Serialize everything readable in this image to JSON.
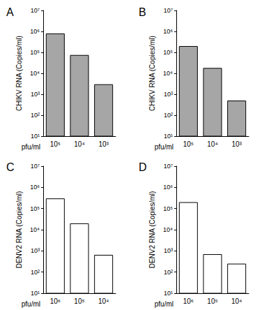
{
  "chart_data": [
    {
      "type": "bar",
      "title": "A",
      "x_label": "pfu/ml",
      "y_label": "CHIKV RNA (Copies/ml)",
      "categories": [
        "10⁵",
        "10⁴",
        "10³"
      ],
      "values": [
        800000,
        75000,
        3000
      ],
      "color": "#a6a6a6",
      "ylim": [
        10,
        10000000
      ],
      "log": "y",
      "grid": false,
      "yticks": [
        {
          "value": 10,
          "label": "10¹"
        },
        {
          "value": 100,
          "label": "10²"
        },
        {
          "value": 1000,
          "label": "10³"
        },
        {
          "value": 10000,
          "label": "10⁴"
        },
        {
          "value": 100000,
          "label": "10⁵"
        },
        {
          "value": 1000000,
          "label": "10⁶"
        },
        {
          "value": 10000000,
          "label": "10⁷"
        }
      ]
    },
    {
      "type": "bar",
      "title": "B",
      "x_label": "pfu/ml",
      "y_label": "CHIKV RNA (Copies/ml)",
      "categories": [
        "10⁵",
        "10⁴",
        "10³"
      ],
      "values": [
        200000,
        18000,
        500
      ],
      "color": "#a6a6a6",
      "ylim": [
        10,
        10000000
      ],
      "log": "y",
      "grid": false,
      "yticks": [
        {
          "value": 10,
          "label": "10¹"
        },
        {
          "value": 100,
          "label": "10²"
        },
        {
          "value": 1000,
          "label": "10³"
        },
        {
          "value": 10000,
          "label": "10⁴"
        },
        {
          "value": 100000,
          "label": "10⁵"
        },
        {
          "value": 1000000,
          "label": "10⁶"
        },
        {
          "value": 10000000,
          "label": "10⁷"
        }
      ]
    },
    {
      "type": "bar",
      "title": "C",
      "x_label": "pfu/ml",
      "y_label": "DENV2 RNA (Copies/ml)",
      "categories": [
        "10⁶",
        "10⁵",
        "10⁴"
      ],
      "values": [
        300000,
        20000,
        650
      ],
      "color": "#ffffff",
      "ylim": [
        10,
        10000000
      ],
      "log": "y",
      "grid": false,
      "yticks": [
        {
          "value": 10,
          "label": "10¹"
        },
        {
          "value": 100,
          "label": "10²"
        },
        {
          "value": 1000,
          "label": "10³"
        },
        {
          "value": 10000,
          "label": "10⁴"
        },
        {
          "value": 100000,
          "label": "10⁵"
        },
        {
          "value": 1000000,
          "label": "10⁶"
        },
        {
          "value": 10000000,
          "label": "10⁷"
        }
      ]
    },
    {
      "type": "bar",
      "title": "D",
      "x_label": "pfu/ml",
      "y_label": "DENV2 RNA (Copies/ml)",
      "categories": [
        "10⁶",
        "10⁵",
        "10⁴"
      ],
      "values": [
        200000,
        700,
        250
      ],
      "color": "#ffffff",
      "ylim": [
        10,
        10000000
      ],
      "log": "y",
      "grid": false,
      "yticks": [
        {
          "value": 10,
          "label": "10¹"
        },
        {
          "value": 100,
          "label": "10²"
        },
        {
          "value": 1000,
          "label": "10³"
        },
        {
          "value": 10000,
          "label": "10⁴"
        },
        {
          "value": 100000,
          "label": "10⁵"
        },
        {
          "value": 1000000,
          "label": "10⁶"
        },
        {
          "value": 10000000,
          "label": "10⁷"
        }
      ]
    }
  ]
}
